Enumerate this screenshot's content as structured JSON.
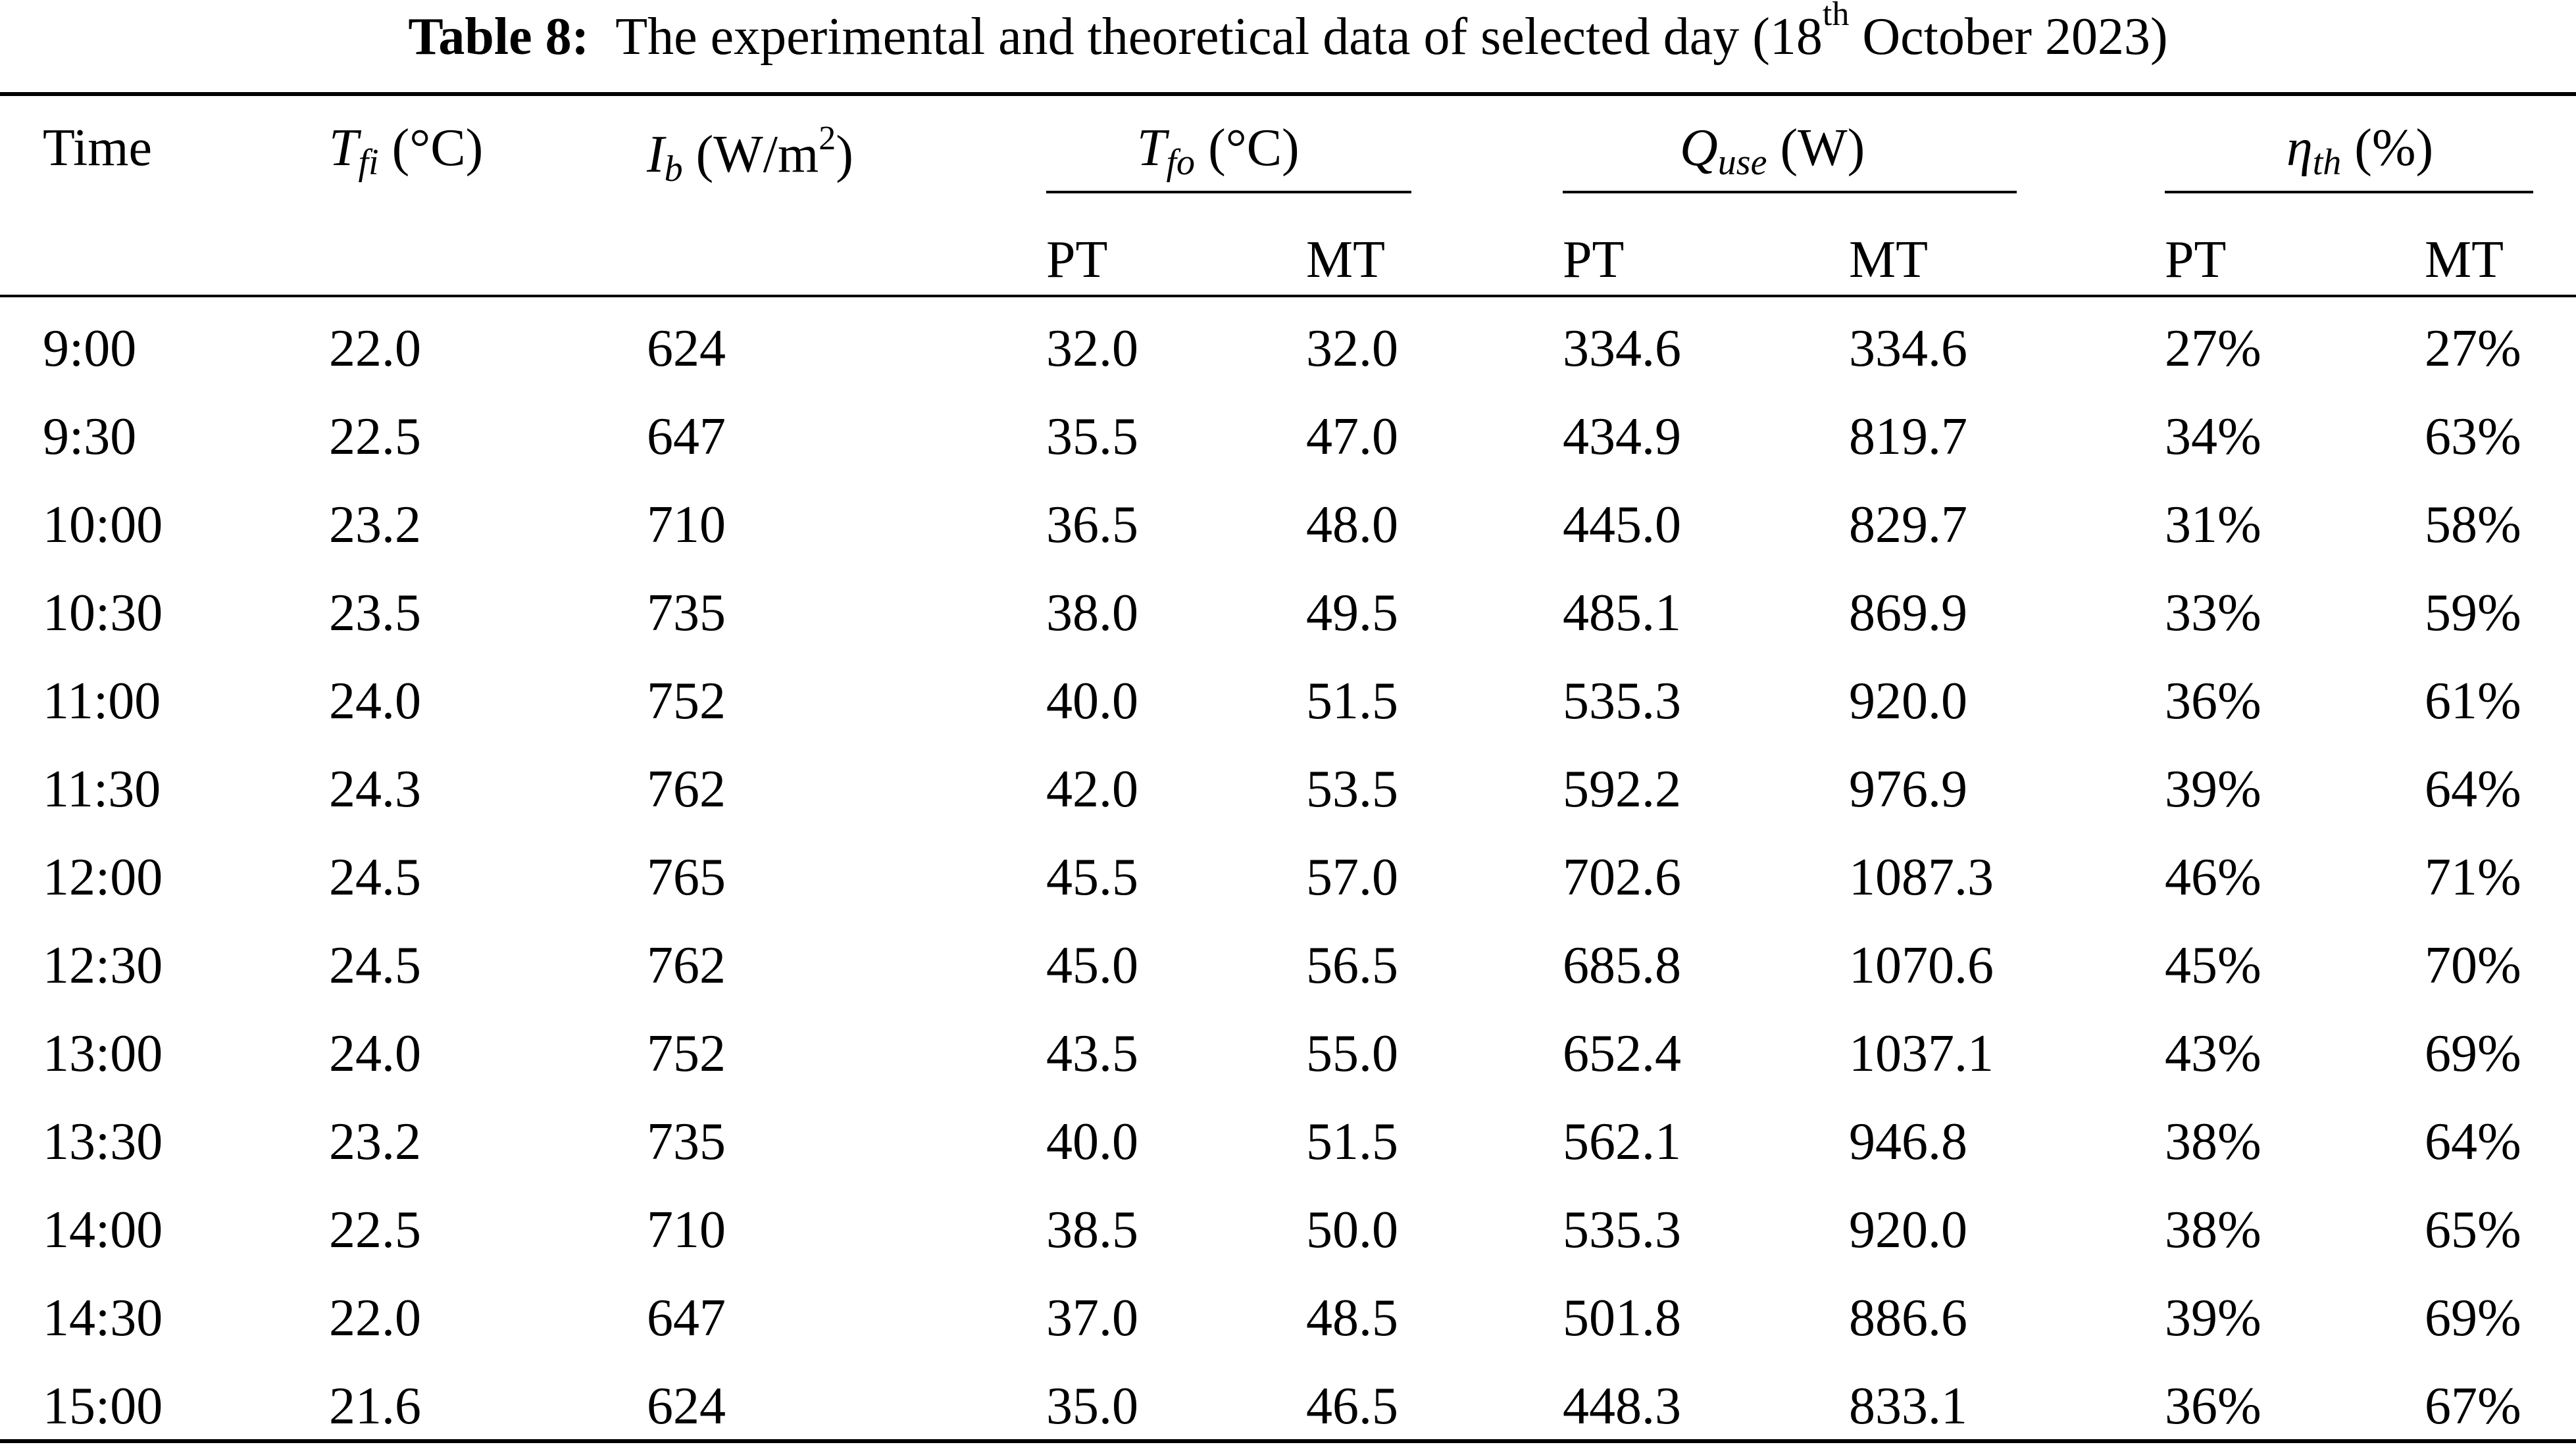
{
  "caption": {
    "label": "Table 8:",
    "text_before": "The experimental and theoretical data of selected day (18",
    "superscript": "th",
    "text_after": " October 2023)"
  },
  "header": {
    "time": "Time",
    "tfi": {
      "symbol": "T",
      "subscript": "fi",
      "unit": "(°C)"
    },
    "ib": {
      "symbol": "I",
      "subscript": "b",
      "unit_before": "(W/m",
      "unit_sup": "2",
      "unit_after": ")"
    },
    "tfo": {
      "symbol": "T",
      "subscript": "fo",
      "unit": "(°C)"
    },
    "quse": {
      "symbol": "Q",
      "subscript": "use",
      "unit": "(W)"
    },
    "eta": {
      "symbol": "η",
      "subscript": "th",
      "unit": "(%)"
    },
    "sub_pt": "PT",
    "sub_mt": "MT"
  },
  "rows": [
    [
      "9:00",
      "22.0",
      "624",
      "32.0",
      "32.0",
      "334.6",
      "334.6",
      "27%",
      "27%"
    ],
    [
      "9:30",
      "22.5",
      "647",
      "35.5",
      "47.0",
      "434.9",
      "819.7",
      "34%",
      "63%"
    ],
    [
      "10:00",
      "23.2",
      "710",
      "36.5",
      "48.0",
      "445.0",
      "829.7",
      "31%",
      "58%"
    ],
    [
      "10:30",
      "23.5",
      "735",
      "38.0",
      "49.5",
      "485.1",
      "869.9",
      "33%",
      "59%"
    ],
    [
      "11:00",
      "24.0",
      "752",
      "40.0",
      "51.5",
      "535.3",
      "920.0",
      "36%",
      "61%"
    ],
    [
      "11:30",
      "24.3",
      "762",
      "42.0",
      "53.5",
      "592.2",
      "976.9",
      "39%",
      "64%"
    ],
    [
      "12:00",
      "24.5",
      "765",
      "45.5",
      "57.0",
      "702.6",
      "1087.3",
      "46%",
      "71%"
    ],
    [
      "12:30",
      "24.5",
      "762",
      "45.0",
      "56.5",
      "685.8",
      "1070.6",
      "45%",
      "70%"
    ],
    [
      "13:00",
      "24.0",
      "752",
      "43.5",
      "55.0",
      "652.4",
      "1037.1",
      "43%",
      "69%"
    ],
    [
      "13:30",
      "23.2",
      "735",
      "40.0",
      "51.5",
      "562.1",
      "946.8",
      "38%",
      "64%"
    ],
    [
      "14:00",
      "22.5",
      "710",
      "38.5",
      "50.0",
      "535.3",
      "920.0",
      "38%",
      "65%"
    ],
    [
      "14:30",
      "22.0",
      "647",
      "37.0",
      "48.5",
      "501.8",
      "886.6",
      "39%",
      "69%"
    ],
    [
      "15:00",
      "21.6",
      "624",
      "35.0",
      "46.5",
      "448.3",
      "833.1",
      "36%",
      "67%"
    ]
  ]
}
